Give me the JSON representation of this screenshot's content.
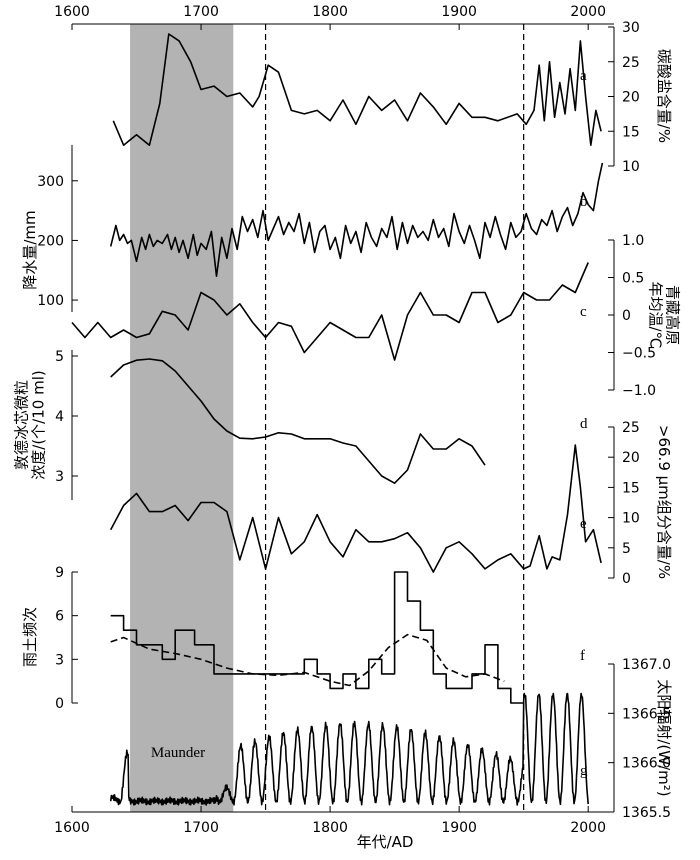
{
  "chart_data": {
    "type": "line",
    "xlabel": "年代/AD",
    "xlim": [
      1600,
      2020
    ],
    "xticks": [
      1600,
      1700,
      1800,
      1900,
      2000
    ],
    "shaded_period": {
      "label": "Maunder",
      "x": [
        1645,
        1725
      ],
      "color": "#b3b3b3"
    },
    "reference_lines": [
      1750,
      1950
    ],
    "panels": [
      {
        "letter": "a",
        "side": "right",
        "ylabel": "碳酸盐含量/%",
        "ylim": [
          10,
          30
        ],
        "ticks": [
          "10",
          "15",
          "20",
          "25",
          "30"
        ],
        "x": [
          1632,
          1640,
          1650,
          1660,
          1668,
          1675,
          1683,
          1692,
          1700,
          1710,
          1720,
          1730,
          1740,
          1745,
          1752,
          1760,
          1770,
          1780,
          1790,
          1800,
          1810,
          1820,
          1830,
          1840,
          1850,
          1860,
          1870,
          1880,
          1890,
          1900,
          1910,
          1920,
          1930,
          1945,
          1952,
          1958,
          1962,
          1966,
          1970,
          1974,
          1978,
          1982,
          1986,
          1990,
          1994,
          1998,
          2002,
          2006,
          2010
        ],
        "y": [
          16.5,
          13.0,
          14.5,
          13.0,
          19.0,
          29.0,
          28.0,
          25.0,
          21.0,
          21.5,
          20.0,
          20.5,
          18.5,
          20.0,
          24.5,
          23.5,
          18.0,
          17.5,
          18.0,
          16.5,
          19.5,
          16.0,
          20.0,
          18.0,
          19.5,
          16.5,
          20.5,
          18.5,
          16.0,
          19.0,
          17.0,
          17.0,
          16.5,
          17.5,
          16.0,
          18.0,
          24.5,
          16.5,
          25.0,
          17.0,
          22.0,
          17.5,
          24.0,
          18.0,
          28.0,
          20.0,
          13.0,
          18.0,
          15.0
        ]
      },
      {
        "letter": "b",
        "side": "left",
        "ylabel": "降水量/mm",
        "ylim": [
          80,
          360
        ],
        "ticks": [
          "100",
          "200",
          "300"
        ],
        "x": [
          1630,
          1634,
          1637,
          1640,
          1643,
          1646,
          1650,
          1654,
          1657,
          1660,
          1663,
          1666,
          1670,
          1674,
          1677,
          1680,
          1683,
          1686,
          1690,
          1694,
          1697,
          1700,
          1704,
          1708,
          1712,
          1716,
          1720,
          1724,
          1728,
          1732,
          1736,
          1740,
          1744,
          1748,
          1752,
          1756,
          1760,
          1764,
          1768,
          1772,
          1776,
          1780,
          1784,
          1788,
          1792,
          1796,
          1800,
          1804,
          1808,
          1812,
          1816,
          1820,
          1824,
          1828,
          1832,
          1836,
          1840,
          1844,
          1848,
          1852,
          1856,
          1860,
          1864,
          1868,
          1872,
          1876,
          1880,
          1884,
          1888,
          1892,
          1896,
          1900,
          1904,
          1908,
          1912,
          1916,
          1920,
          1924,
          1928,
          1932,
          1936,
          1940,
          1944,
          1948,
          1952,
          1956,
          1960,
          1964,
          1968,
          1972,
          1976,
          1980,
          1984,
          1988,
          1992,
          1996,
          2000,
          2004,
          2008,
          2011
        ],
        "y": [
          190,
          225,
          200,
          210,
          195,
          200,
          165,
          205,
          185,
          210,
          190,
          200,
          195,
          210,
          185,
          205,
          180,
          200,
          170,
          210,
          175,
          195,
          185,
          215,
          140,
          205,
          170,
          220,
          185,
          240,
          215,
          235,
          205,
          250,
          200,
          220,
          240,
          210,
          230,
          215,
          245,
          195,
          230,
          180,
          215,
          225,
          185,
          205,
          170,
          225,
          195,
          215,
          180,
          230,
          205,
          190,
          220,
          205,
          240,
          185,
          230,
          195,
          225,
          205,
          215,
          200,
          235,
          205,
          220,
          190,
          245,
          215,
          195,
          225,
          200,
          170,
          230,
          205,
          240,
          210,
          185,
          230,
          205,
          215,
          245,
          220,
          210,
          235,
          225,
          250,
          215,
          240,
          255,
          225,
          245,
          280,
          260,
          250,
          300,
          330
        ]
      },
      {
        "letter": "c",
        "side": "right",
        "ylabel": "青藏高原\n年均温/℃",
        "ylim": [
          -1.0,
          1.0
        ],
        "ticks": [
          "−1.0",
          "−0.5",
          "0",
          "0.5",
          "1.0"
        ],
        "x": [
          1600,
          1610,
          1620,
          1630,
          1640,
          1650,
          1660,
          1670,
          1680,
          1690,
          1700,
          1710,
          1720,
          1730,
          1740,
          1750,
          1760,
          1770,
          1780,
          1790,
          1800,
          1810,
          1820,
          1830,
          1840,
          1850,
          1860,
          1870,
          1880,
          1890,
          1900,
          1910,
          1920,
          1930,
          1940,
          1950,
          1960,
          1970,
          1980,
          1990,
          2000
        ],
        "y": [
          -0.1,
          -0.3,
          -0.1,
          -0.3,
          -0.2,
          -0.3,
          -0.25,
          0.05,
          0.0,
          -0.2,
          0.3,
          0.2,
          0.0,
          0.15,
          -0.1,
          -0.3,
          -0.1,
          -0.15,
          -0.5,
          -0.3,
          -0.1,
          -0.2,
          -0.3,
          -0.3,
          0.0,
          -0.6,
          0.0,
          0.3,
          0.0,
          0.0,
          -0.1,
          0.3,
          0.3,
          -0.1,
          0.0,
          0.3,
          0.2,
          0.2,
          0.4,
          0.3,
          0.7
        ]
      },
      {
        "letter": "d",
        "side": "left",
        "ylabel": "敦德冰芯微粒\n浓度/(个/10 ml)",
        "ylim": [
          2.6,
          5.1
        ],
        "ticks": [
          "3",
          "4",
          "5"
        ],
        "x": [
          1630,
          1640,
          1650,
          1660,
          1670,
          1680,
          1690,
          1700,
          1710,
          1720,
          1730,
          1740,
          1750,
          1760,
          1770,
          1780,
          1790,
          1800,
          1810,
          1820,
          1830,
          1840,
          1850,
          1860,
          1870,
          1880,
          1890,
          1900,
          1910,
          1920
        ],
        "y": [
          4.65,
          4.85,
          4.93,
          4.95,
          4.92,
          4.75,
          4.5,
          4.25,
          3.95,
          3.75,
          3.63,
          3.62,
          3.65,
          3.72,
          3.7,
          3.62,
          3.62,
          3.62,
          3.55,
          3.5,
          3.25,
          3.0,
          2.88,
          3.1,
          3.7,
          3.45,
          3.45,
          3.62,
          3.5,
          3.18
        ]
      },
      {
        "letter": "e",
        "side": "right",
        "ylabel": ">66.9 μm组分含量/%",
        "ylim": [
          0,
          25
        ],
        "ticks": [
          "0",
          "5",
          "10",
          "15",
          "20",
          "25"
        ],
        "x": [
          1630,
          1640,
          1650,
          1660,
          1670,
          1680,
          1690,
          1700,
          1710,
          1720,
          1730,
          1740,
          1750,
          1760,
          1770,
          1780,
          1790,
          1800,
          1810,
          1820,
          1830,
          1840,
          1850,
          1860,
          1870,
          1880,
          1890,
          1900,
          1910,
          1920,
          1930,
          1940,
          1950,
          1955,
          1962,
          1968,
          1972,
          1978,
          1984,
          1990,
          1994,
          1998,
          2004,
          2010
        ],
        "y": [
          8,
          12,
          14,
          11,
          11,
          12,
          9.5,
          12.5,
          12.5,
          11,
          3,
          10,
          1.5,
          10,
          4,
          6,
          10.5,
          6,
          3.5,
          8,
          6,
          6,
          6.5,
          7.5,
          5,
          1,
          5,
          6,
          4,
          1.5,
          3,
          4,
          1.5,
          2,
          7,
          1.5,
          3.5,
          3,
          10.5,
          22,
          15,
          6,
          8,
          2.5
        ]
      },
      {
        "letter": "f",
        "side": "left",
        "ylabel": "雨土频次",
        "ylim": [
          0,
          9
        ],
        "ticks": [
          "0",
          "3",
          "6",
          "9"
        ],
        "step_x": [
          1630,
          1640,
          1650,
          1660,
          1670,
          1680,
          1695,
          1710,
          1720,
          1780,
          1790,
          1800,
          1810,
          1820,
          1830,
          1840,
          1850,
          1860,
          1870,
          1880,
          1890,
          1900,
          1910,
          1920,
          1930,
          1940
        ],
        "step_y": [
          6,
          5,
          4,
          4,
          3,
          5,
          4,
          2,
          2,
          3,
          2,
          1,
          2,
          1,
          3,
          2,
          9,
          7,
          5,
          2,
          1,
          1,
          2,
          4,
          1,
          0
        ],
        "smooth_x": [
          1630,
          1640,
          1660,
          1680,
          1700,
          1720,
          1740,
          1760,
          1780,
          1800,
          1815,
          1830,
          1845,
          1860,
          1875,
          1890,
          1905,
          1920,
          1935
        ],
        "smooth_y": [
          4.2,
          4.5,
          3.7,
          3.4,
          3.0,
          2.4,
          2.0,
          1.9,
          2.1,
          1.5,
          1.2,
          2.2,
          3.8,
          4.7,
          4.3,
          2.4,
          1.8,
          2.0,
          1.5
        ]
      },
      {
        "letter": "g",
        "side": "right",
        "ylabel": "太阳辐射/(W/m²)",
        "ylim": [
          1365.5,
          1367.0
        ],
        "ticks": [
          "1365.5",
          "1366.0",
          "1366.5",
          "1367.0"
        ],
        "x_start": 1630,
        "x_end": 2000,
        "annotation": "Maunder"
      }
    ]
  }
}
